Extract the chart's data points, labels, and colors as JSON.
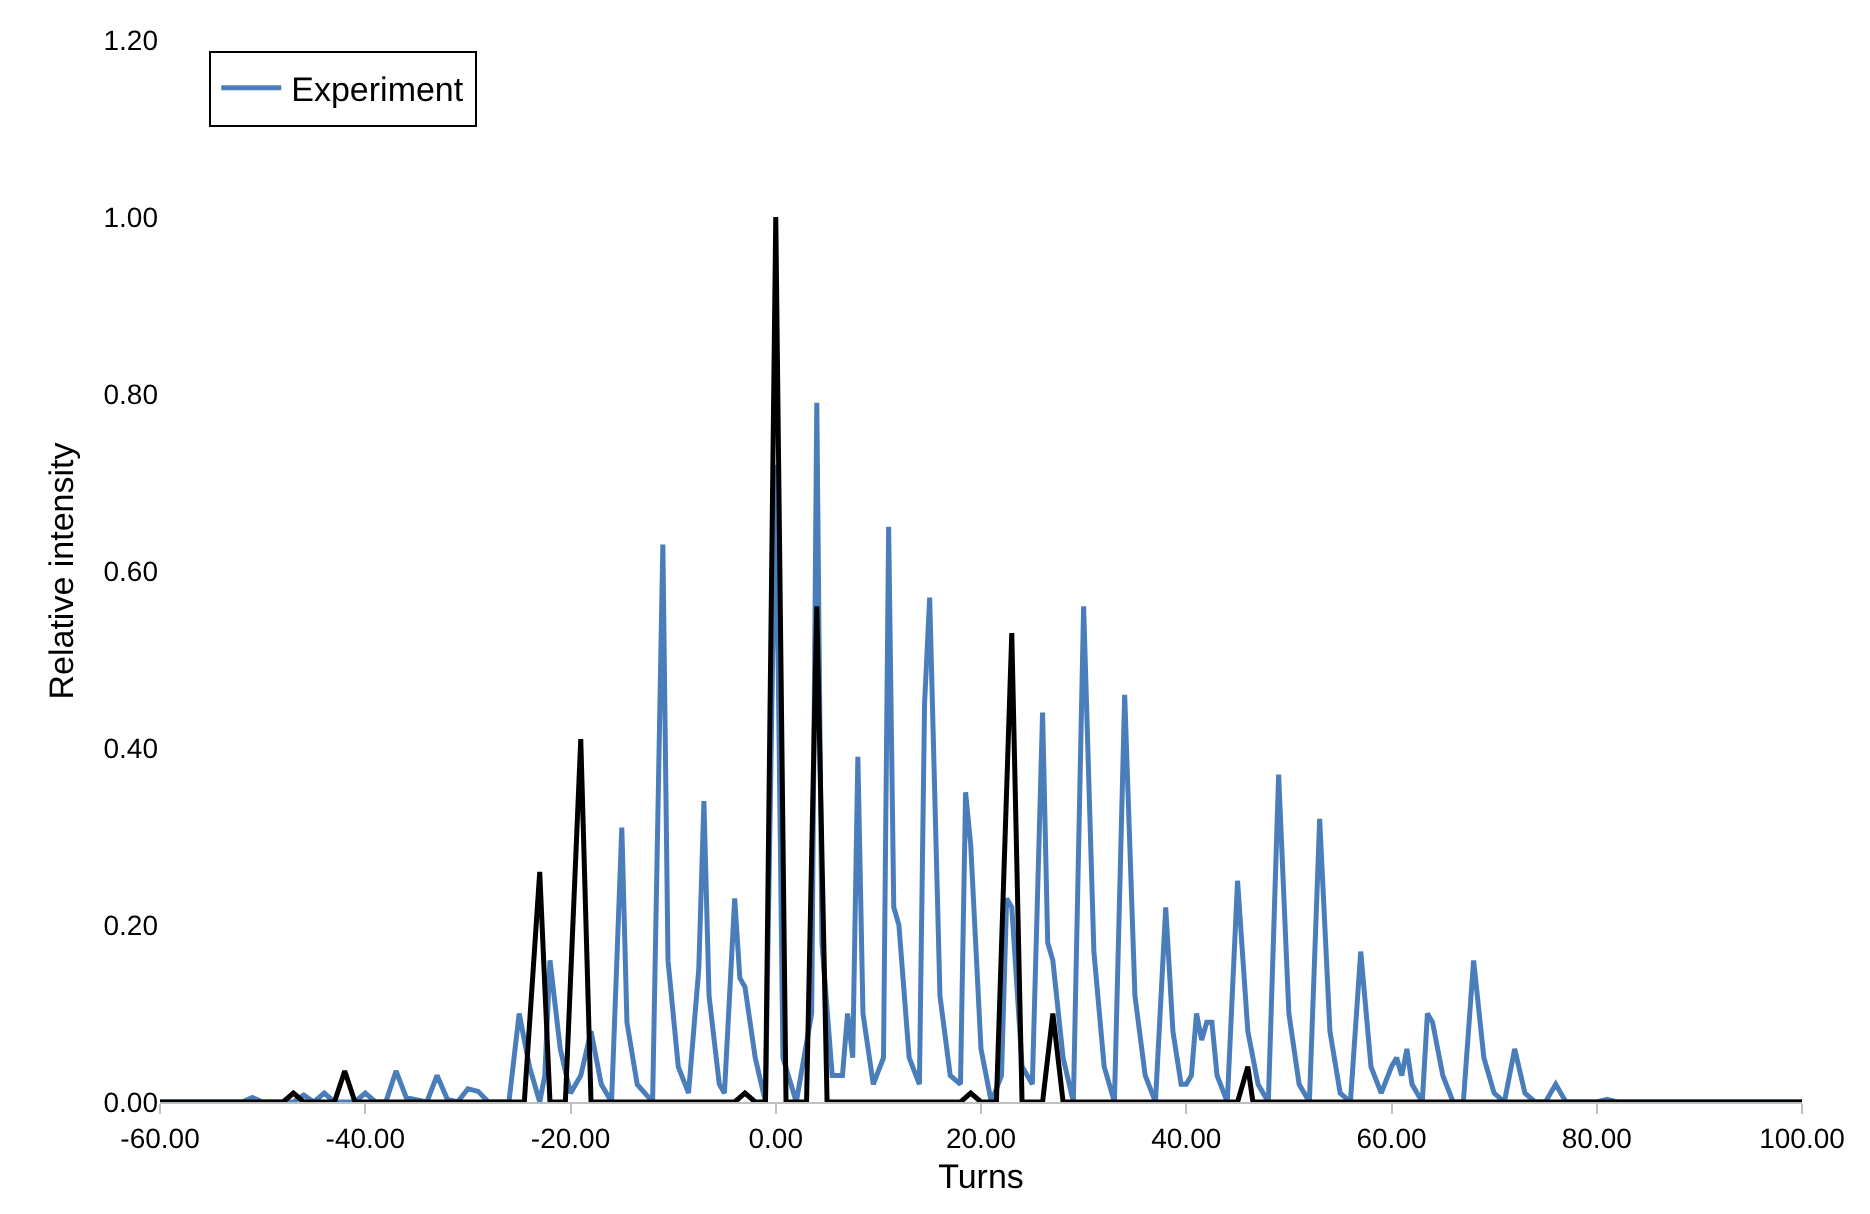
{
  "chart_data": {
    "type": "line",
    "xlabel": "Turns",
    "ylabel": "Relative intensity",
    "xlim": [
      -60,
      100
    ],
    "xticks": [
      {
        "value": -60,
        "label": "-60.00"
      },
      {
        "value": -40,
        "label": "-40.00"
      },
      {
        "value": -20,
        "label": "-20.00"
      },
      {
        "value": 0,
        "label": "0.00"
      },
      {
        "value": 20,
        "label": "20.00"
      },
      {
        "value": 40,
        "label": "40.00"
      },
      {
        "value": 60,
        "label": "60.00"
      },
      {
        "value": 80,
        "label": "80.00"
      },
      {
        "value": 100,
        "label": "100.00"
      }
    ],
    "ylim": [
      0,
      1.2
    ],
    "yticks": [
      {
        "value": 0,
        "label": "0.00"
      },
      {
        "value": 0.2,
        "label": "0.20"
      },
      {
        "value": 0.4,
        "label": "0.40"
      },
      {
        "value": 0.6,
        "label": "0.60"
      },
      {
        "value": 0.8,
        "label": "0.80"
      },
      {
        "value": 1,
        "label": "1.00"
      },
      {
        "value": 1.2,
        "label": "1.20"
      }
    ],
    "grid": false,
    "legend": "top left",
    "marker": "none",
    "line_style": "solid",
    "series": [
      {
        "name": "Experiment",
        "color": "#4a7ebb",
        "x": [
          -60,
          -52,
          -51,
          -50,
          -47,
          -46,
          -45,
          -44,
          -43,
          -41,
          -40,
          -39,
          -38,
          -37,
          -36,
          -34,
          -33,
          -32,
          -31,
          -30,
          -29,
          -28,
          -26,
          -25,
          -24,
          -23,
          -22.5,
          -22,
          -21,
          -20,
          -19,
          -18,
          -17,
          -16,
          -15,
          -14.5,
          -13.5,
          -12,
          -11,
          -10.5,
          -9.5,
          -8.5,
          -7.5,
          -7,
          -6.5,
          -5.5,
          -5,
          -4,
          -3.5,
          -3,
          -2,
          -1,
          0,
          0.7,
          2,
          3.5,
          4,
          4.5,
          5.5,
          6.5,
          7,
          7.5,
          8,
          8.5,
          9.5,
          10.5,
          11,
          11.5,
          12,
          13,
          14,
          14.5,
          15,
          16,
          17,
          18,
          18.5,
          19,
          20,
          21,
          22,
          22.5,
          23,
          24,
          25,
          26,
          26.5,
          27,
          28,
          29,
          30,
          31,
          32,
          33,
          34,
          35,
          36,
          37,
          38,
          38.7,
          39.5,
          40,
          40.5,
          41,
          41.5,
          42,
          42.5,
          43,
          44,
          45,
          46,
          47,
          48,
          49,
          50,
          51,
          52,
          53,
          54,
          55,
          56,
          57,
          58,
          59,
          60,
          60.5,
          61,
          61.5,
          62,
          63,
          63.5,
          64,
          65,
          66,
          67,
          68,
          69,
          70,
          71,
          72,
          73,
          74,
          75,
          76,
          77,
          80,
          81,
          82,
          100
        ],
        "values": [
          0,
          0,
          0.005,
          0,
          0,
          0.008,
          0,
          0.01,
          0,
          0,
          0.01,
          0,
          0,
          0.035,
          0.005,
          0,
          0.03,
          0.003,
          0,
          0.015,
          0.012,
          0,
          0,
          0.1,
          0.04,
          0,
          0.03,
          0.16,
          0.06,
          0.01,
          0.03,
          0.08,
          0.02,
          0,
          0.31,
          0.09,
          0.02,
          0,
          0.63,
          0.16,
          0.04,
          0.01,
          0.15,
          0.34,
          0.12,
          0.02,
          0.01,
          0.23,
          0.14,
          0.13,
          0.05,
          0,
          0.72,
          0.05,
          0,
          0.1,
          0.79,
          0.18,
          0.03,
          0.03,
          0.1,
          0.05,
          0.39,
          0.1,
          0.02,
          0.05,
          0.65,
          0.22,
          0.2,
          0.05,
          0.02,
          0.45,
          0.57,
          0.12,
          0.03,
          0.02,
          0.35,
          0.29,
          0.06,
          0,
          0.03,
          0.23,
          0.22,
          0.04,
          0.02,
          0.44,
          0.18,
          0.16,
          0.05,
          0,
          0.56,
          0.17,
          0.04,
          0,
          0.46,
          0.12,
          0.03,
          0,
          0.22,
          0.08,
          0.02,
          0.02,
          0.03,
          0.1,
          0.07,
          0.09,
          0.09,
          0.03,
          0,
          0.25,
          0.08,
          0.02,
          0,
          0.37,
          0.1,
          0.02,
          0,
          0.32,
          0.08,
          0.01,
          0,
          0.17,
          0.04,
          0.01,
          0.04,
          0.05,
          0.03,
          0.06,
          0.02,
          0,
          0.1,
          0.09,
          0.03,
          0,
          0,
          0.16,
          0.05,
          0.01,
          0,
          0.06,
          0.01,
          0,
          0,
          0.02,
          0,
          0,
          0.003,
          0,
          0
        ]
      },
      {
        "color": "#000000",
        "x": [
          -60,
          -48,
          -47,
          -46,
          -43,
          -42,
          -41,
          -24.5,
          -23,
          -22,
          -20.5,
          -19,
          -18,
          -4,
          -3,
          -2,
          -1,
          0,
          1,
          3,
          4,
          5,
          18,
          19,
          20,
          21.5,
          23,
          24,
          26,
          27,
          28,
          45,
          46,
          46.5,
          100
        ],
        "values": [
          0,
          0,
          0.01,
          0,
          0,
          0.035,
          0,
          0,
          0.26,
          0,
          0,
          0.41,
          0,
          0,
          0.01,
          0,
          0,
          1,
          0,
          0,
          0.56,
          0,
          0,
          0.01,
          0,
          0,
          0.53,
          0,
          0,
          0.1,
          0,
          0,
          0.04,
          0,
          0
        ]
      }
    ]
  }
}
